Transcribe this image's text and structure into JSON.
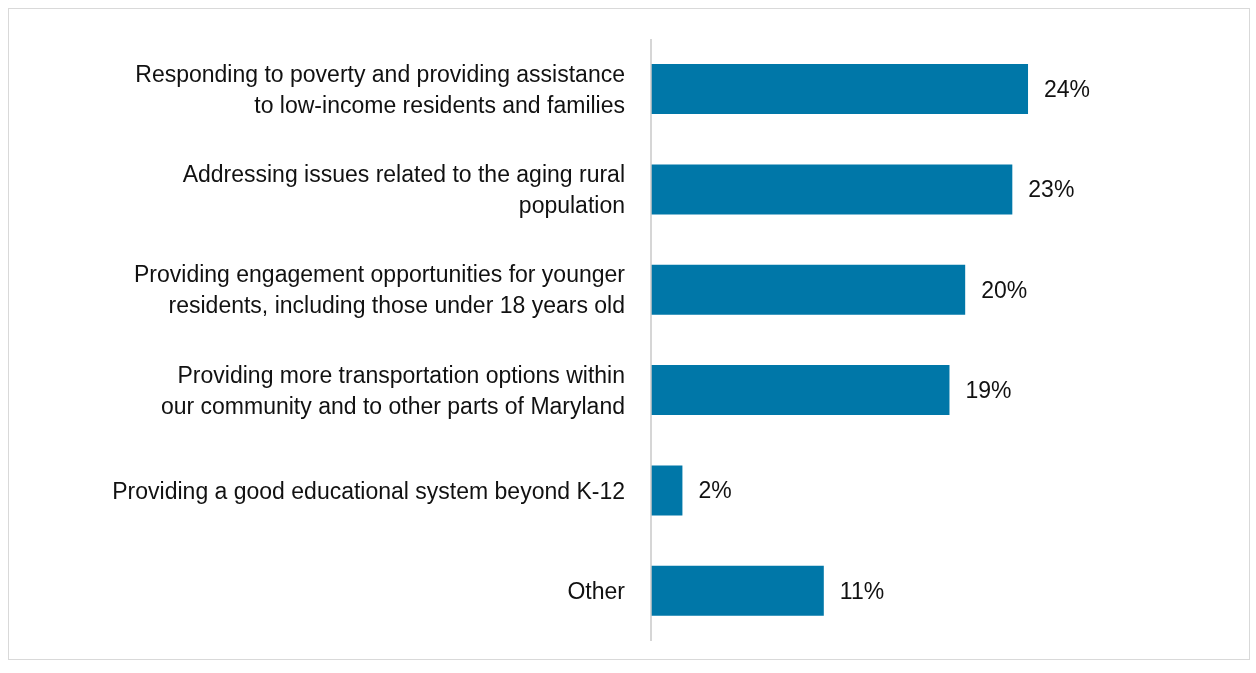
{
  "chart_data": {
    "type": "bar",
    "orientation": "horizontal",
    "categories": [
      "Responding to poverty and providing assistance to low-income residents and families",
      "Addressing issues related to the aging rural population",
      "Providing engagement opportunities for younger residents, including those under 18 years old",
      "Providing more transportation options within our community and to other parts of Maryland",
      "Providing a good educational system beyond K-12",
      "Other"
    ],
    "values": [
      24,
      23,
      20,
      19,
      2,
      11
    ],
    "value_labels": [
      "24%",
      "23%",
      "20%",
      "19%",
      "2%",
      "11%"
    ],
    "color": "#0077a8",
    "grid": false,
    "legend": false
  }
}
